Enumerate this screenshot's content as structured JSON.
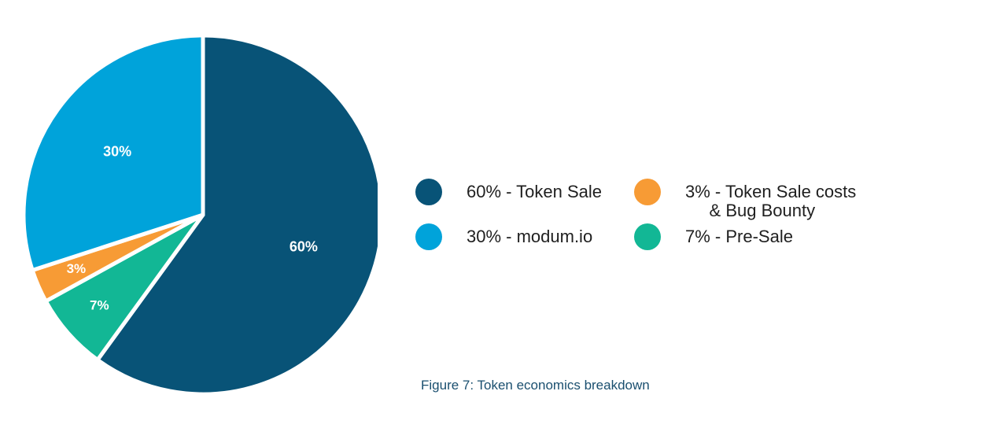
{
  "chart_data": {
    "type": "pie",
    "slices": [
      {
        "label": "Token Sale",
        "value": 60,
        "display": "60%",
        "color": "#085377"
      },
      {
        "label": "Pre-Sale",
        "value": 7,
        "display": "7%",
        "color": "#12b795"
      },
      {
        "label": "Token Sale costs & Bug Bounty",
        "value": 3,
        "display": "3%",
        "color": "#f79b35"
      },
      {
        "label": "modum.io",
        "value": 30,
        "display": "30%",
        "color": "#00a3da"
      }
    ],
    "legend": [
      {
        "text": "60% - Token Sale",
        "color": "#085377"
      },
      {
        "text": "3% - Token Sale costs\n     & Bug Bounty",
        "color": "#f79b35"
      },
      {
        "text": "30% - modum.io",
        "color": "#00a3da"
      },
      {
        "text": "7% - Pre-Sale",
        "color": "#12b795"
      }
    ],
    "legend_placement": "right"
  },
  "caption": "Figure 7: Token economics breakdown"
}
